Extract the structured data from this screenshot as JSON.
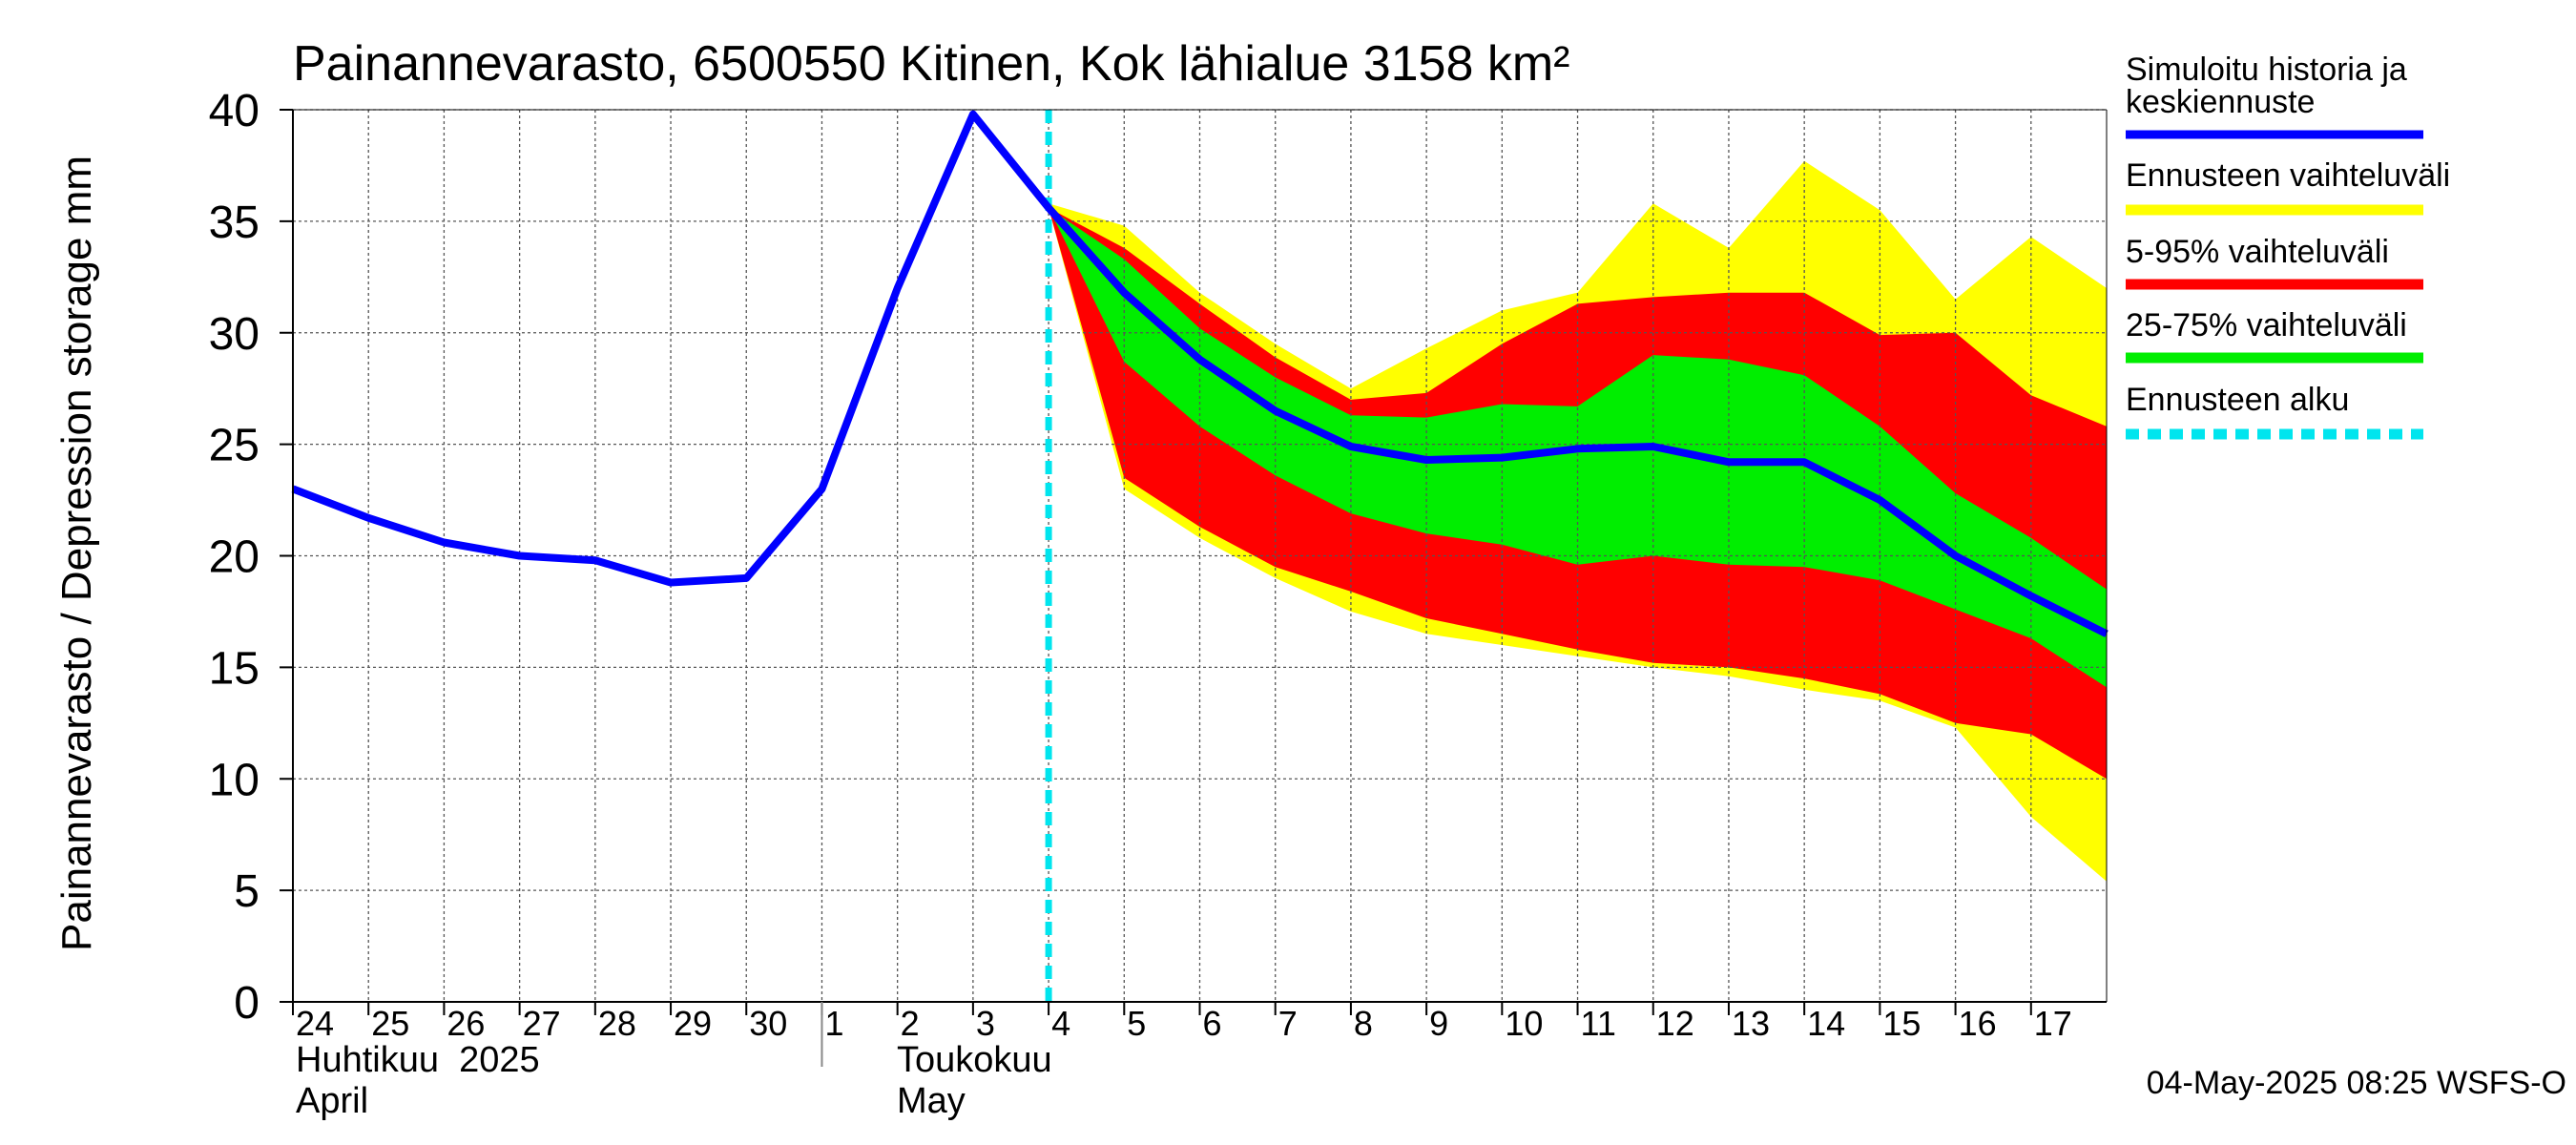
{
  "chart_data": {
    "type": "area",
    "title": "Painannevarasto, 6500550 Kitinen, Kok lähialue 3158 km²",
    "ylabel": "Painannevarasto / Depression storage    mm",
    "ylim": [
      0,
      40
    ],
    "yticks": [
      0,
      5,
      10,
      15,
      20,
      25,
      30,
      35,
      40
    ],
    "grid": true,
    "legend_position": "right",
    "x_day_labels": [
      "24",
      "25",
      "26",
      "27",
      "28",
      "29",
      "30",
      "1",
      "2",
      "3",
      "4",
      "5",
      "6",
      "7",
      "8",
      "9",
      "10",
      "11",
      "12",
      "13",
      "14",
      "15",
      "16",
      "17"
    ],
    "month_labels": [
      {
        "fi": "Huhtikuu  2025",
        "en": "April"
      },
      {
        "fi": "Toukokuu",
        "en": "May"
      }
    ],
    "forecast_start": "4",
    "timestamp": "04-May-2025 08:25 WSFS-O",
    "legend": [
      {
        "label": "Simuloitu historia ja keskiennuste",
        "color": "#0000ff",
        "style": "solid"
      },
      {
        "label": "Ennusteen vaihteluväli",
        "color": "#ffff00",
        "style": "solid"
      },
      {
        "label": "5-95% vaihteluväli",
        "color": "#ff0000",
        "style": "solid"
      },
      {
        "label": "25-75% vaihteluväli",
        "color": "#00ee00",
        "style": "solid"
      },
      {
        "label": "Ennusteen alku",
        "color": "#00e5ee",
        "style": "dashed"
      }
    ],
    "history": {
      "x": [
        0,
        1,
        2,
        3,
        4,
        5,
        6,
        7,
        8,
        9,
        10
      ],
      "y": [
        23.0,
        21.7,
        20.6,
        20.0,
        19.8,
        18.8,
        19.0,
        23.0,
        32.0,
        39.8,
        35.6
      ]
    },
    "forecast": {
      "x": [
        10,
        11,
        12,
        13,
        14,
        15,
        16,
        17,
        18,
        19,
        20,
        21,
        22,
        23,
        24
      ],
      "median": [
        35.6,
        31.8,
        28.8,
        26.5,
        24.9,
        24.3,
        24.4,
        24.8,
        24.9,
        24.2,
        24.2,
        22.5,
        20.0,
        18.2,
        16.5
      ],
      "range_hi": [
        35.8,
        34.8,
        31.8,
        29.5,
        27.5,
        29.3,
        31.0,
        31.8,
        35.8,
        33.8,
        37.7,
        35.5,
        31.5,
        34.3,
        32.0
      ],
      "range_lo": [
        35.6,
        23.0,
        20.8,
        19.0,
        17.5,
        16.5,
        16.0,
        15.5,
        15.0,
        14.6,
        14.0,
        13.5,
        12.3,
        8.3,
        5.4
      ],
      "p95": [
        35.6,
        33.8,
        31.3,
        28.9,
        27.0,
        27.3,
        29.5,
        31.3,
        31.6,
        31.8,
        31.8,
        29.9,
        30.0,
        27.2,
        25.8
      ],
      "p5": [
        35.6,
        23.5,
        21.3,
        19.5,
        18.4,
        17.2,
        16.5,
        15.8,
        15.2,
        15.0,
        14.5,
        13.8,
        12.5,
        12.0,
        10.0
      ],
      "p75": [
        35.6,
        33.3,
        30.2,
        28.0,
        26.3,
        26.2,
        26.8,
        26.7,
        29.0,
        28.8,
        28.1,
        25.8,
        22.8,
        20.8,
        18.5
      ],
      "p25": [
        35.6,
        28.7,
        25.8,
        23.6,
        21.9,
        21.0,
        20.5,
        19.6,
        20.0,
        19.6,
        19.5,
        18.9,
        17.6,
        16.3,
        14.1
      ]
    }
  }
}
